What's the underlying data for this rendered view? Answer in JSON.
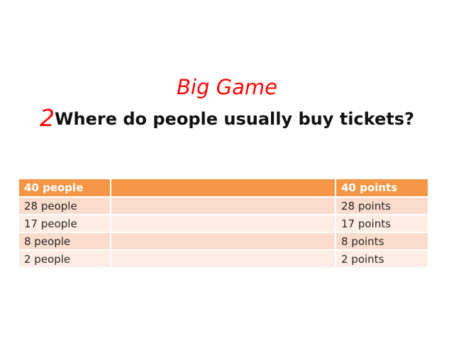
{
  "slide": {
    "title": "Big Game",
    "question_number": "2",
    "question": "Where do people usually buy tickets?"
  },
  "table": {
    "header": {
      "left": "40 people",
      "middle": "",
      "right": "40 points"
    },
    "rows": [
      {
        "left": "28 people",
        "middle": "",
        "right": "28 points"
      },
      {
        "left": "17 people",
        "middle": "",
        "right": "17 points"
      },
      {
        "left": "8 people",
        "middle": "",
        "right": "8 points"
      },
      {
        "left": "2 people",
        "middle": "",
        "right": "2 points"
      }
    ]
  },
  "colors": {
    "title_red": "#ff0606",
    "header_orange": "#f79646",
    "row_dark": "#fbdccc",
    "row_light": "#fdede5"
  }
}
